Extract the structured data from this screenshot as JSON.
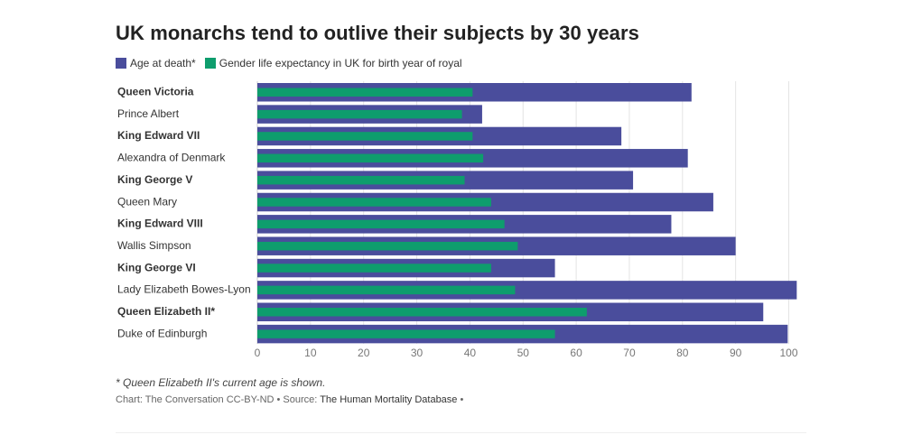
{
  "colors": {
    "age": "#4a4d9c",
    "life": "#0e9d6d",
    "grid": "#e4e4e4",
    "axis": "#cccccc"
  },
  "chart_data": {
    "type": "bar",
    "orientation": "horizontal",
    "title": "UK monarchs tend to outlive their subjects by 30 years",
    "categories": [
      "Queen Victoria",
      "Prince Albert",
      "King Edward VII",
      "Alexandra of Denmark",
      "King George V",
      "Queen Mary",
      "King Edward VIII",
      "Wallis Simpson",
      "King George VI",
      "Lady Elizabeth Bowes-Lyon",
      "Queen Elizabeth II*",
      "Duke of Edinburgh"
    ],
    "bold_categories": [
      "Queen Victoria",
      "King Edward VII",
      "King George V",
      "King Edward VIII",
      "King George VI",
      "Queen Elizabeth II*"
    ],
    "series": [
      {
        "name": "Age at death*",
        "values": [
          81.7,
          42.3,
          68.5,
          81,
          70.7,
          85.8,
          77.9,
          90,
          56,
          101.5,
          95.2,
          99.8
        ]
      },
      {
        "name": "Gender life expectancy in UK for birth year of royal",
        "values": [
          40.5,
          38.5,
          40.5,
          42.5,
          39,
          44,
          46.5,
          49,
          44,
          48.5,
          62,
          56
        ]
      }
    ],
    "xlim": [
      0,
      102
    ],
    "xticks": [
      0,
      10,
      20,
      30,
      40,
      50,
      60,
      70,
      80,
      90,
      100
    ],
    "grid": true,
    "legend": "top-left"
  },
  "footnote": "* Queen Elizabeth II's current age is shown.",
  "credits": {
    "prefix": "Chart: The Conversation CC-BY-ND • Source: ",
    "source": "The Human Mortality Database",
    "suffix": " •"
  }
}
